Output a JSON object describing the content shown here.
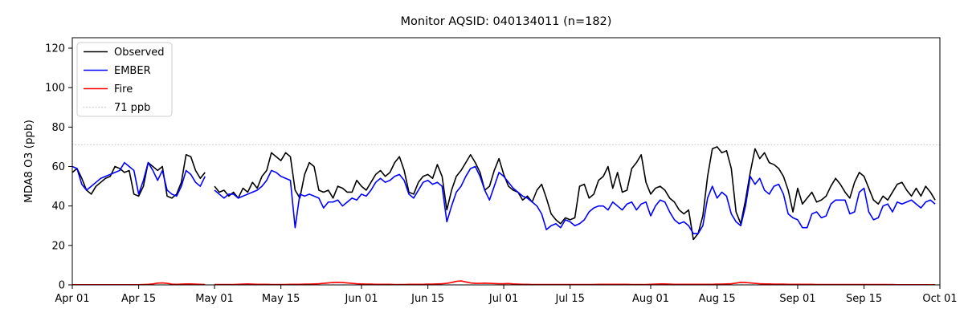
{
  "figure": {
    "title": "Monitor AQSID: 040134011 (n=182)"
  },
  "chart_data": {
    "type": "line",
    "title": "Monitor AQSID: 040134011 (n=182)",
    "xlabel": "",
    "ylabel": "MDA8 O3 (ppb)",
    "ylim": [
      0,
      125.3
    ],
    "x_unit": "days since Apr 01",
    "x_range": [
      0,
      183
    ],
    "grid": false,
    "legend_position": "upper left",
    "n_label": "n=182",
    "y_ticks": [
      0,
      20,
      40,
      60,
      80,
      100,
      120
    ],
    "x_ticks": [
      {
        "label": "Apr 01",
        "day": 0
      },
      {
        "label": "Apr 15",
        "day": 14
      },
      {
        "label": "May 01",
        "day": 30
      },
      {
        "label": "May 15",
        "day": 44
      },
      {
        "label": "Jun 01",
        "day": 61
      },
      {
        "label": "Jun 15",
        "day": 75
      },
      {
        "label": "Jul 01",
        "day": 91
      },
      {
        "label": "Jul 15",
        "day": 105
      },
      {
        "label": "Aug 01",
        "day": 122
      },
      {
        "label": "Aug 15",
        "day": 136
      },
      {
        "label": "Sep 01",
        "day": 153
      },
      {
        "label": "Sep 15",
        "day": 167
      },
      {
        "label": "Oct 01",
        "day": 183
      }
    ],
    "threshold": {
      "label": "71 ppb",
      "value": 71,
      "color": "#d3d3d3",
      "style": "dotted"
    },
    "missing_day_index": 29,
    "series": [
      {
        "name": "Observed",
        "color": "#000000",
        "values": [
          57,
          59,
          54,
          48,
          46,
          50,
          52,
          54,
          55,
          60,
          59,
          57,
          58,
          46,
          45,
          50,
          62,
          60,
          58,
          60,
          45,
          44,
          46,
          52,
          66,
          65,
          58,
          54,
          57,
          null,
          50,
          47,
          48,
          45,
          47,
          44,
          49,
          47,
          52,
          49,
          55,
          58,
          67,
          65,
          63,
          67,
          65,
          48,
          44,
          56,
          62,
          60,
          48,
          47,
          48,
          44,
          50,
          49,
          47,
          47,
          53,
          50,
          48,
          52,
          56,
          58,
          55,
          57,
          62,
          65,
          58,
          47,
          46,
          52,
          55,
          56,
          54,
          61,
          55,
          38,
          48,
          55,
          58,
          62,
          66,
          62,
          57,
          48,
          50,
          58,
          64,
          56,
          50,
          48,
          47,
          43,
          45,
          42,
          48,
          51,
          44,
          36,
          33,
          31,
          34,
          33,
          34,
          50,
          51,
          44,
          46,
          53,
          55,
          60,
          49,
          57,
          47,
          48,
          59,
          62,
          66,
          52,
          46,
          49,
          50,
          48,
          44,
          42,
          38,
          36,
          38,
          23,
          26,
          35,
          55,
          69,
          70,
          67,
          68,
          59,
          37,
          31,
          43,
          57,
          69,
          64,
          67,
          62,
          61,
          59,
          55,
          48,
          37,
          49,
          41,
          44,
          47,
          42,
          43,
          45,
          50,
          54,
          51,
          47,
          44,
          52,
          57,
          55,
          49,
          43,
          41,
          45,
          43,
          47,
          51,
          52,
          48,
          45,
          49,
          45,
          50,
          47,
          43
        ]
      },
      {
        "name": "EMBER",
        "color": "#0000ff",
        "values": [
          60,
          59,
          51,
          48,
          50,
          52,
          54,
          55,
          56,
          57,
          58,
          62,
          60,
          58,
          46,
          53,
          62,
          58,
          53,
          58,
          48,
          46,
          45,
          50,
          58,
          56,
          52,
          50,
          55,
          null,
          48,
          46,
          44,
          46,
          46,
          44,
          45,
          46,
          47,
          48,
          50,
          53,
          58,
          57,
          55,
          54,
          53,
          29,
          46,
          45,
          46,
          45,
          44,
          39,
          42,
          42,
          43,
          40,
          42,
          44,
          43,
          46,
          45,
          48,
          52,
          54,
          52,
          53,
          55,
          56,
          53,
          46,
          44,
          48,
          52,
          53,
          51,
          52,
          50,
          32,
          40,
          47,
          50,
          55,
          59,
          60,
          55,
          48,
          43,
          50,
          57,
          55,
          52,
          49,
          47,
          45,
          44,
          42,
          40,
          36,
          28,
          30,
          31,
          29,
          33,
          32,
          30,
          31,
          33,
          37,
          39,
          40,
          40,
          38,
          42,
          40,
          38,
          41,
          42,
          38,
          41,
          42,
          35,
          40,
          43,
          42,
          37,
          33,
          31,
          32,
          30,
          26,
          26,
          30,
          44,
          50,
          44,
          47,
          45,
          36,
          32,
          30,
          40,
          55,
          51,
          54,
          48,
          46,
          50,
          51,
          46,
          36,
          34,
          33,
          29,
          29,
          36,
          37,
          34,
          35,
          41,
          43,
          43,
          43,
          36,
          37,
          47,
          49,
          37,
          33,
          34,
          40,
          41,
          37,
          42,
          41,
          42,
          43,
          41,
          39,
          42,
          43,
          41
        ]
      },
      {
        "name": "Fire",
        "color": "#ff0000",
        "values": [
          0.1,
          0.1,
          0.1,
          0.1,
          0.1,
          0.1,
          0.1,
          0.1,
          0.1,
          0.1,
          0.1,
          0.1,
          0.1,
          0.1,
          0.1,
          0.2,
          0.3,
          0.5,
          0.9,
          1.0,
          0.8,
          0.4,
          0.3,
          0.4,
          0.5,
          0.5,
          0.4,
          0.3,
          0.2,
          null,
          0.2,
          0.2,
          0.2,
          0.2,
          0.2,
          0.3,
          0.4,
          0.5,
          0.4,
          0.3,
          0.3,
          0.3,
          0.2,
          0.2,
          0.2,
          0.2,
          0.3,
          0.3,
          0.3,
          0.4,
          0.4,
          0.5,
          0.6,
          0.8,
          1.0,
          1.2,
          1.3,
          1.2,
          1.0,
          0.8,
          0.6,
          0.5,
          0.4,
          0.4,
          0.3,
          0.3,
          0.3,
          0.3,
          0.2,
          0.2,
          0.2,
          0.3,
          0.3,
          0.3,
          0.3,
          0.4,
          0.4,
          0.5,
          0.6,
          0.8,
          1.2,
          1.8,
          2.0,
          1.5,
          1.0,
          0.8,
          0.8,
          0.9,
          0.8,
          0.7,
          0.6,
          0.6,
          0.7,
          0.5,
          0.4,
          0.3,
          0.3,
          0.2,
          0.2,
          0.2,
          0.2,
          0.2,
          0.2,
          0.2,
          0.2,
          0.2,
          0.2,
          0.2,
          0.2,
          0.2,
          0.2,
          0.3,
          0.3,
          0.3,
          0.3,
          0.3,
          0.3,
          0.3,
          0.2,
          0.2,
          0.2,
          0.2,
          0.3,
          0.4,
          0.5,
          0.5,
          0.4,
          0.3,
          0.3,
          0.3,
          0.3,
          0.3,
          0.3,
          0.3,
          0.3,
          0.3,
          0.4,
          0.4,
          0.5,
          0.6,
          0.9,
          1.3,
          1.2,
          1.0,
          0.8,
          0.6,
          0.5,
          0.5,
          0.4,
          0.4,
          0.4,
          0.3,
          0.3,
          0.3,
          0.3,
          0.3,
          0.3,
          0.2,
          0.2,
          0.2,
          0.2,
          0.2,
          0.2,
          0.2,
          0.2,
          0.2,
          0.2,
          0.2,
          0.2,
          0.2,
          0.2,
          0.2,
          0.2,
          0.2,
          0.1,
          0.1,
          0.1,
          0.1,
          0.1,
          0.1,
          0.1,
          0.1,
          0.1
        ]
      }
    ]
  }
}
